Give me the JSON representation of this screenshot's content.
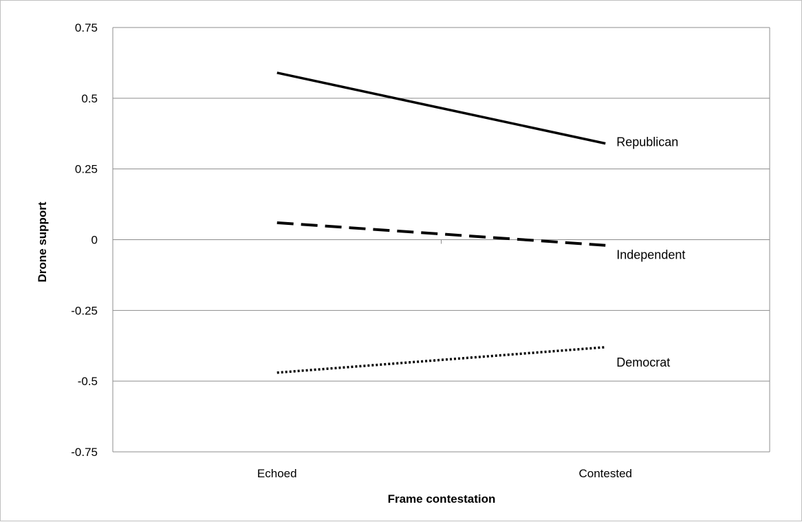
{
  "chart_data": {
    "type": "line",
    "title": "",
    "xlabel": "Frame contestation",
    "ylabel": "Drone support",
    "categories": [
      "Echoed",
      "Contested"
    ],
    "ylim": [
      -0.75,
      0.75
    ],
    "yticks": [
      0.75,
      0.5,
      0.25,
      0,
      -0.25,
      -0.5,
      -0.75
    ],
    "ytick_labels": [
      "0.75",
      "0.5",
      "0.25",
      "0",
      "-0.25",
      "-0.5",
      "-0.75"
    ],
    "grid": true,
    "legend": "inline labels at line ends",
    "series": [
      {
        "name": "Republican",
        "values": [
          0.59,
          0.34
        ],
        "style": "solid",
        "color": "#000000"
      },
      {
        "name": "Independent",
        "values": [
          0.06,
          -0.02
        ],
        "style": "dashed",
        "color": "#000000"
      },
      {
        "name": "Democrat",
        "values": [
          -0.47,
          -0.38
        ],
        "style": "dotted",
        "color": "#000000"
      }
    ]
  }
}
